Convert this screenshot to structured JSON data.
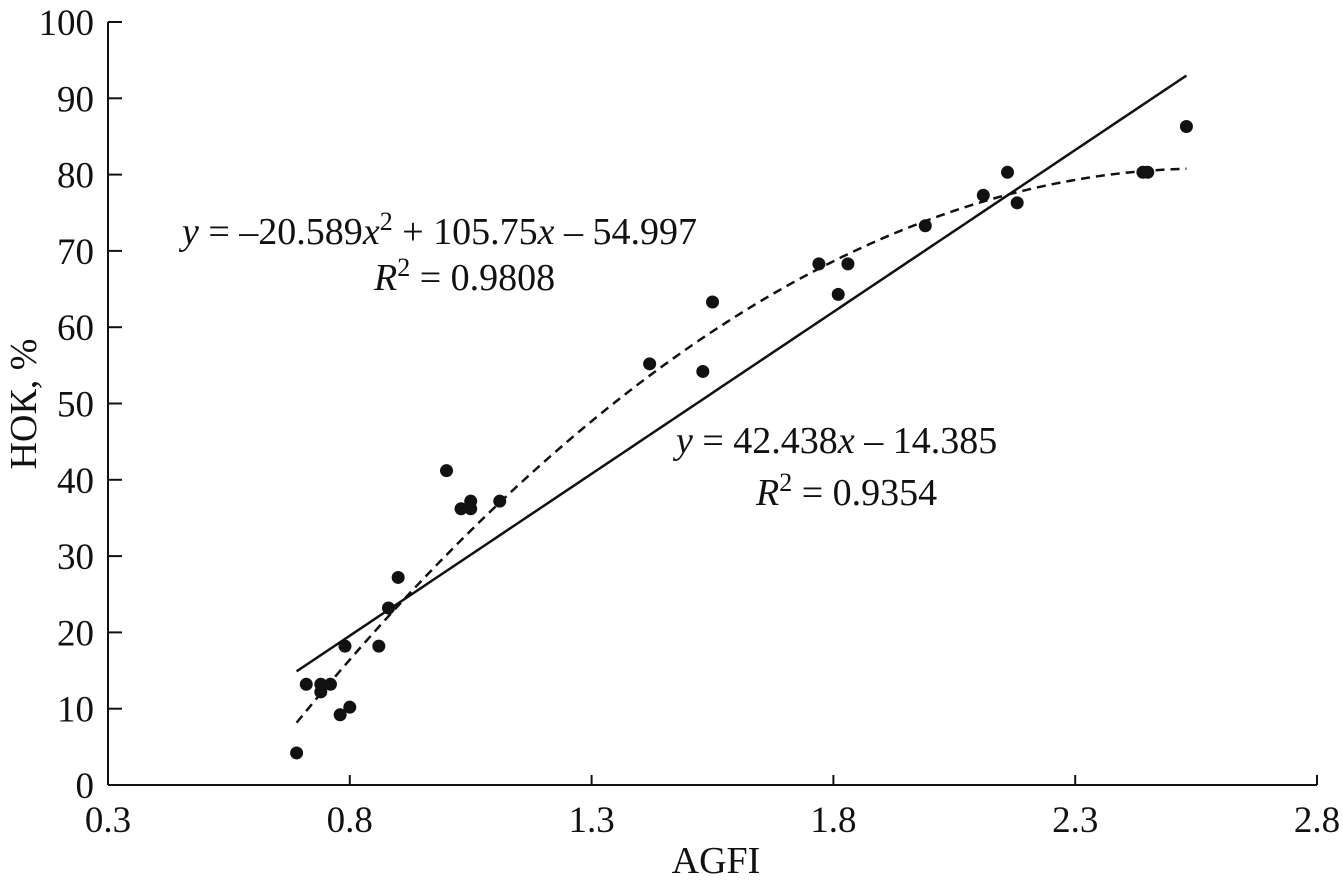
{
  "chart_data": {
    "type": "scatter",
    "xlabel": "AGFI",
    "ylabel": "НОК, %",
    "xlim": [
      0.3,
      2.8
    ],
    "ylim": [
      0,
      100
    ],
    "xticks": [
      0.3,
      0.8,
      1.3,
      1.8,
      2.3,
      2.8
    ],
    "yticks": [
      0,
      10,
      20,
      30,
      40,
      50,
      60,
      70,
      80,
      90,
      100
    ],
    "grid": false,
    "points": {
      "x": [
        0.69,
        0.71,
        0.74,
        0.74,
        0.76,
        0.78,
        0.79,
        0.8,
        0.86,
        0.88,
        0.9,
        1.0,
        1.03,
        1.05,
        1.05,
        1.11,
        1.42,
        1.53,
        1.55,
        1.77,
        1.81,
        1.83,
        1.99,
        2.11,
        2.16,
        2.18,
        2.44,
        2.45,
        2.53
      ],
      "y": [
        4.2,
        13.2,
        13.2,
        12.2,
        13.2,
        9.2,
        18.2,
        10.2,
        18.2,
        23.2,
        27.2,
        41.2,
        36.2,
        36.2,
        37.2,
        37.2,
        55.2,
        54.2,
        63.3,
        68.3,
        64.3,
        68.3,
        73.3,
        77.3,
        80.3,
        76.3,
        80.3,
        80.3,
        86.3
      ]
    },
    "fits": [
      {
        "kind": "linear",
        "style": "solid",
        "coefficients": {
          "a": 42.438,
          "b": -14.385
        },
        "x_range": [
          0.69,
          2.53
        ],
        "equation_parts": {
          "y": "y",
          "rhs_a": " = 42.438",
          "x": "x",
          "rhs_b": " – 14.385"
        },
        "r2_parts": {
          "r": "R",
          "sup": "2",
          "rhs": " = 0.9354"
        }
      },
      {
        "kind": "quadratic",
        "style": "dashed",
        "coefficients": {
          "a": -20.589,
          "b": 105.75,
          "c": -54.997
        },
        "x_range": [
          0.69,
          2.53
        ],
        "equation_parts": {
          "y": "y",
          "rhs_a": " = –20.589",
          "x1": "x",
          "sup": "2",
          "rhs_b": " + 105.75",
          "x2": "x",
          "rhs_c": " – 54.997"
        },
        "r2_parts": {
          "r": "R",
          "sup": "2",
          "rhs": " = 0.9808"
        }
      }
    ],
    "colors": {
      "axis": "#111111",
      "points": "#111111",
      "lines": "#111111"
    }
  }
}
